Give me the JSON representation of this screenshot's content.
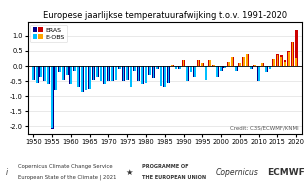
{
  "chart_data": {
    "type": "bar",
    "title": "Europese jaarlijkse temperatuurafwijking t.o.v. 1991-2020",
    "x": [
      1950,
      1951,
      1952,
      1953,
      1954,
      1955,
      1956,
      1957,
      1958,
      1959,
      1960,
      1961,
      1962,
      1963,
      1964,
      1965,
      1966,
      1967,
      1968,
      1969,
      1970,
      1971,
      1972,
      1973,
      1974,
      1975,
      1976,
      1977,
      1978,
      1979,
      1980,
      1981,
      1982,
      1983,
      1984,
      1985,
      1986,
      1987,
      1988,
      1989,
      1990,
      1991,
      1992,
      1993,
      1994,
      1995,
      1996,
      1997,
      1998,
      1999,
      2000,
      2001,
      2002,
      2003,
      2004,
      2005,
      2006,
      2007,
      2008,
      2009,
      2010,
      2011,
      2012,
      2013,
      2014,
      2015,
      2016,
      2017,
      2018,
      2019,
      2020
    ],
    "series": [
      {
        "name": "ERAS",
        "values": [
          -0.45,
          -0.55,
          -0.35,
          -0.5,
          -0.6,
          -2.1,
          -0.8,
          -0.2,
          -0.45,
          -0.3,
          -0.6,
          -0.15,
          -0.7,
          -0.85,
          -0.8,
          -0.75,
          -0.45,
          -0.35,
          -0.5,
          -0.6,
          -0.5,
          -0.5,
          -0.45,
          -0.1,
          -0.5,
          -0.45,
          -0.7,
          -0.15,
          -0.5,
          -0.6,
          -0.55,
          -0.3,
          -0.4,
          -0.1,
          -0.65,
          -0.7,
          -0.55,
          0.05,
          -0.1,
          -0.1,
          0.2,
          -0.5,
          -0.2,
          -0.35,
          0.2,
          0.1,
          -0.45,
          0.2,
          0.05,
          -0.35,
          -0.15,
          -0.05,
          0.15,
          0.3,
          -0.15,
          0.1,
          0.3,
          0.4,
          -0.1,
          0.05,
          -0.5,
          0.1,
          -0.2,
          -0.1,
          0.25,
          0.4,
          0.35,
          0.2,
          0.5,
          0.8,
          1.2
        ],
        "colors": [
          "#00008B",
          "#00008B",
          "#00008B",
          "#00008B",
          "#00008B",
          "#00008B",
          "#00008B",
          "#00008B",
          "#00008B",
          "#00008B",
          "#00008B",
          "#00008B",
          "#00008B",
          "#00008B",
          "#00008B",
          "#00008B",
          "#00008B",
          "#00008B",
          "#00008B",
          "#00008B",
          "#00008B",
          "#00008B",
          "#00008B",
          "#00008B",
          "#00008B",
          "#00008B",
          "#00008B",
          "#00008B",
          "#00008B",
          "#00008B",
          "#00008B",
          "#00008B",
          "#00008B",
          "#00008B",
          "#00008B",
          "#00008B",
          "#00008B",
          "#CC0000",
          "#00008B",
          "#00008B",
          "#CC0000",
          "#00008B",
          "#00008B",
          "#00008B",
          "#CC0000",
          "#CC0000",
          "#00008B",
          "#CC0000",
          "#CC0000",
          "#00008B",
          "#00008B",
          "#00008B",
          "#CC0000",
          "#CC0000",
          "#00008B",
          "#CC0000",
          "#CC0000",
          "#CC0000",
          "#00008B",
          "#CC0000",
          "#00008B",
          "#CC0000",
          "#00008B",
          "#00008B",
          "#CC0000",
          "#CC0000",
          "#CC0000",
          "#CC0000",
          "#CC0000",
          "#CC0000",
          "#CC0000"
        ]
      },
      {
        "name": "E-OBS",
        "values": [
          -0.45,
          -0.55,
          -0.35,
          -0.5,
          -0.6,
          -2.05,
          -0.8,
          -0.2,
          -0.45,
          -0.3,
          -0.6,
          -0.15,
          -0.7,
          -0.85,
          -0.8,
          -0.75,
          -0.45,
          -0.35,
          -0.5,
          -0.6,
          -0.5,
          -0.5,
          -0.45,
          -0.1,
          -0.5,
          -0.45,
          -0.7,
          -0.15,
          -0.5,
          -0.6,
          -0.55,
          -0.3,
          -0.4,
          -0.1,
          -0.65,
          -0.7,
          -0.55,
          0.05,
          -0.1,
          -0.1,
          0.2,
          -0.5,
          -0.2,
          -0.35,
          0.2,
          0.1,
          -0.45,
          0.2,
          0.05,
          -0.35,
          -0.15,
          -0.05,
          0.15,
          0.3,
          -0.15,
          0.1,
          0.3,
          0.4,
          -0.1,
          0.05,
          -0.5,
          0.1,
          -0.2,
          -0.1,
          0.25,
          0.35,
          0.3,
          0.15,
          0.45,
          0.8,
          0.28
        ],
        "colors": [
          "#00BFFF",
          "#00BFFF",
          "#00BFFF",
          "#00BFFF",
          "#00BFFF",
          "#00BFFF",
          "#00BFFF",
          "#00BFFF",
          "#00BFFF",
          "#00BFFF",
          "#00BFFF",
          "#00BFFF",
          "#00BFFF",
          "#00BFFF",
          "#00BFFF",
          "#00BFFF",
          "#00BFFF",
          "#00BFFF",
          "#00BFFF",
          "#00BFFF",
          "#00BFFF",
          "#00BFFF",
          "#00BFFF",
          "#00BFFF",
          "#00BFFF",
          "#00BFFF",
          "#00BFFF",
          "#00BFFF",
          "#00BFFF",
          "#00BFFF",
          "#00BFFF",
          "#00BFFF",
          "#00BFFF",
          "#00BFFF",
          "#00BFFF",
          "#00BFFF",
          "#00BFFF",
          "#FFA500",
          "#00BFFF",
          "#00BFFF",
          "#FFA500",
          "#00BFFF",
          "#00BFFF",
          "#00BFFF",
          "#FFA500",
          "#FFA500",
          "#00BFFF",
          "#FFA500",
          "#FFA500",
          "#00BFFF",
          "#00BFFF",
          "#00BFFF",
          "#FFA500",
          "#FFA500",
          "#00BFFF",
          "#FFA500",
          "#FFA500",
          "#FFA500",
          "#00BFFF",
          "#FFA500",
          "#00BFFF",
          "#FFA500",
          "#00BFFF",
          "#00BFFF",
          "#FFA500",
          "#FFA500",
          "#FFA500",
          "#FFA500",
          "#FFA500",
          "#FFA500",
          "#FFA500"
        ]
      }
    ],
    "xlim": [
      1948.5,
      2021.5
    ],
    "ylim": [
      -2.25,
      1.45
    ],
    "xticks": [
      1950,
      1955,
      1960,
      1965,
      1970,
      1975,
      1980,
      1985,
      1990,
      1995,
      2000,
      2005,
      2010,
      2015,
      2020
    ],
    "yticks": [
      -2.0,
      -1.5,
      -1.0,
      -0.5,
      0.0,
      0.5,
      1.0
    ],
    "grid": "y",
    "legend": "upper left",
    "annotations": [
      "Credit: C3S/ECWMF/KNMI",
      "i",
      "Copernicus Climate Change Service",
      "European State of the Climate | 2021",
      "★",
      "PROGRAMME OF",
      "THE EUROPEAN UNION",
      "Copernicus",
      "ECMWF"
    ]
  }
}
